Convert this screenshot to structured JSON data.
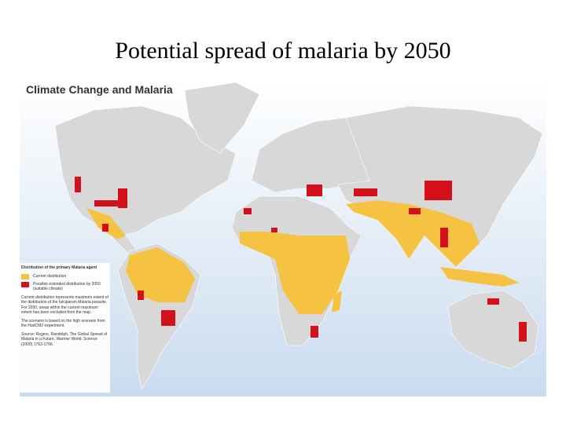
{
  "slide": {
    "title": "Potential spread of malaria by 2050"
  },
  "map": {
    "title": "Climate Change and Malaria",
    "legend": {
      "heading": "Distribution of the primary Malaria agent",
      "items": [
        {
          "label": "Current distribution"
        },
        {
          "label": "Possible extended distribution by 2050 (suitable climate)"
        }
      ]
    },
    "notes": [
      "Current distribution represents maximum extent of the distribution of the falciparum Malaria parasite. For 2050, areas within the current maximum extent has been excluded from the map.",
      "The scenario is based on the high scenario from the HadCM2 experiment.",
      "Source: Rogers, Randolph, The Global Spread of Malaria in a Future, Warmer World, Science (2000) 1763-1766."
    ]
  }
}
